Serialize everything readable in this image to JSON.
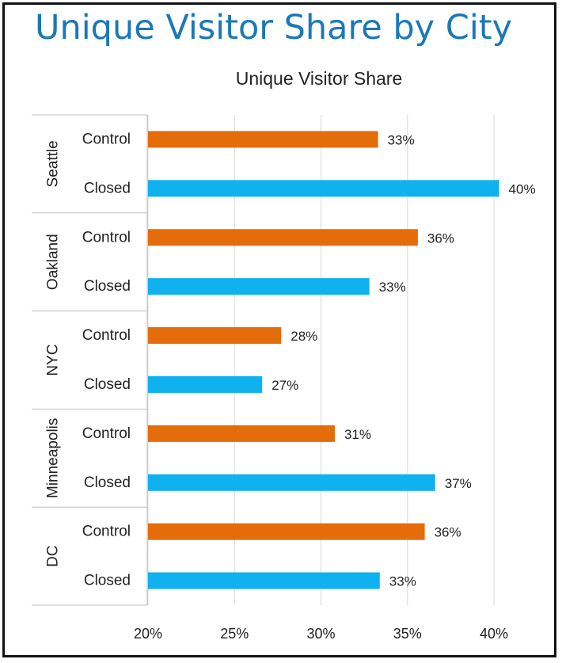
{
  "page": {
    "title": "Unique Visitor Share by City"
  },
  "chart_data": {
    "type": "bar",
    "orientation": "horizontal",
    "title": "Unique Visitor Share",
    "xlim": [
      20,
      40
    ],
    "x_ticks": [
      "20%",
      "25%",
      "30%",
      "35%",
      "40%"
    ],
    "grid": true,
    "groups": [
      {
        "city": "Seattle",
        "bars": [
          {
            "label": "Control",
            "value": 33.3,
            "display": "33%"
          },
          {
            "label": "Closed",
            "value": 40.3,
            "display": "40%"
          }
        ]
      },
      {
        "city": "Oakland",
        "bars": [
          {
            "label": "Control",
            "value": 35.6,
            "display": "36%"
          },
          {
            "label": "Closed",
            "value": 32.8,
            "display": "33%"
          }
        ]
      },
      {
        "city": "NYC",
        "bars": [
          {
            "label": "Control",
            "value": 27.7,
            "display": "28%"
          },
          {
            "label": "Closed",
            "value": 26.6,
            "display": "27%"
          }
        ]
      },
      {
        "city": "Minneapolis",
        "bars": [
          {
            "label": "Control",
            "value": 30.8,
            "display": "31%"
          },
          {
            "label": "Closed",
            "value": 36.6,
            "display": "37%"
          }
        ]
      },
      {
        "city": "DC",
        "bars": [
          {
            "label": "Control",
            "value": 36.0,
            "display": "36%"
          },
          {
            "label": "Closed",
            "value": 33.4,
            "display": "33%"
          }
        ]
      }
    ],
    "colors": {
      "Control": "#e46c0a",
      "Closed": "#0fb1ef"
    }
  }
}
